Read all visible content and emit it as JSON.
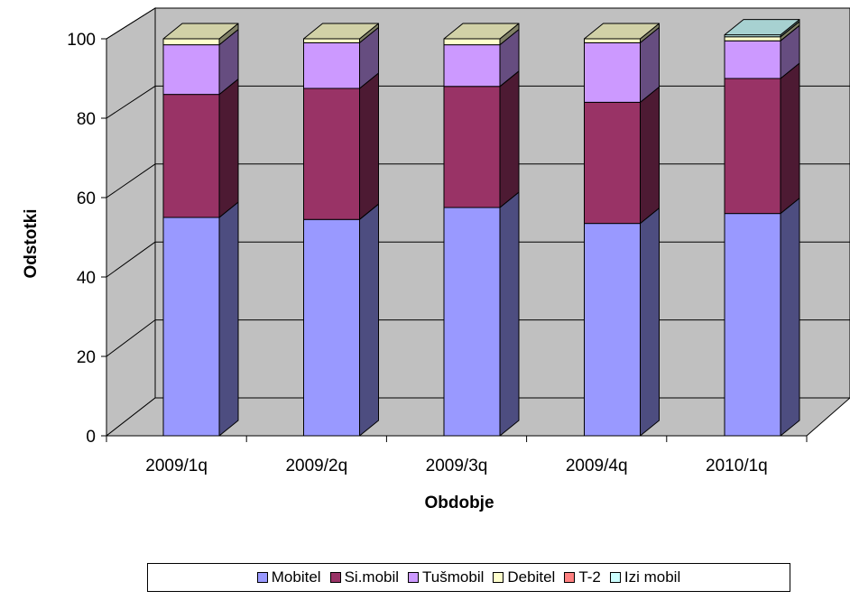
{
  "chart_data": {
    "type": "bar",
    "stacked": true,
    "style": "3d",
    "categories": [
      "2009/1q",
      "2009/2q",
      "2009/3q",
      "2009/4q",
      "2010/1q"
    ],
    "series": [
      {
        "name": "Mobitel",
        "color": "#9999ff",
        "values": [
          55,
          54.5,
          57.5,
          53.5,
          56
        ]
      },
      {
        "name": "Si.mobil",
        "color": "#993366",
        "values": [
          31,
          33,
          30.5,
          30.5,
          34
        ]
      },
      {
        "name": "Tušmobil",
        "color": "#cc99ff",
        "values": [
          12.5,
          11.5,
          10.5,
          15,
          9.5
        ]
      },
      {
        "name": "Debitel",
        "color": "#ffffcc",
        "values": [
          1.5,
          1,
          1.5,
          1,
          1
        ]
      },
      {
        "name": "T-2",
        "color": "#ff8080",
        "values": [
          0,
          0,
          0,
          0,
          0
        ]
      },
      {
        "name": "Izi mobil",
        "color": "#ccffff",
        "values": [
          0,
          0,
          0,
          0,
          0.5
        ]
      }
    ],
    "xlabel": "Obdobje",
    "ylabel": "Odstotki",
    "ylim": [
      0,
      100
    ],
    "yticks": [
      "0",
      "20",
      "40",
      "60",
      "80",
      "100"
    ],
    "grid": true,
    "legend_position": "bottom"
  }
}
